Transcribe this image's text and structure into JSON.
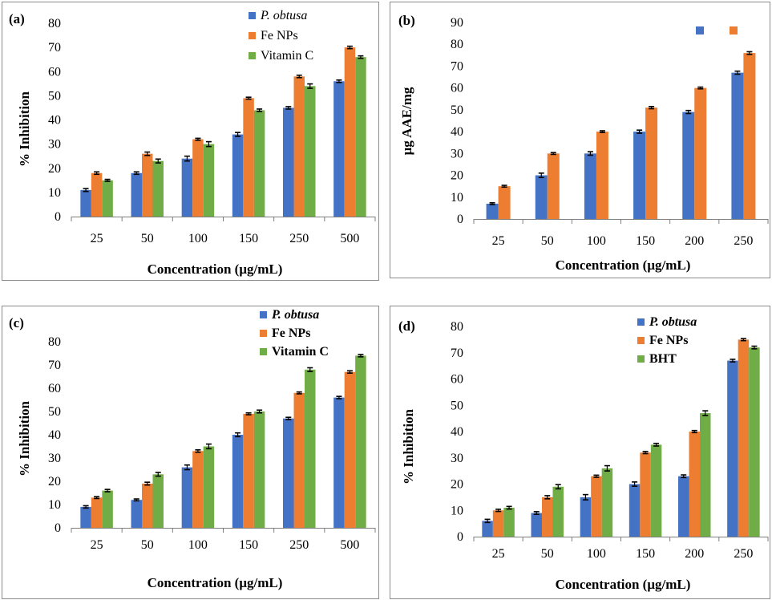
{
  "colors": {
    "s1": "#4472C4",
    "s2": "#ED7D31",
    "s3": "#70AD47",
    "error": "#000000",
    "axis": "#7f7f7f"
  },
  "chart_data": [
    {
      "id": "a",
      "panel_label": "(a)",
      "type": "bar",
      "ylabel": "% Inhibition",
      "xlabel": "Concentration (μg/mL)",
      "ylim": [
        0,
        80
      ],
      "ystep": 10,
      "grid": false,
      "legend_placement": "top-center",
      "categories": [
        "25",
        "50",
        "100",
        "150",
        "250",
        "500"
      ],
      "series": [
        {
          "name": "P. obtusa",
          "italic": true,
          "values": [
            11,
            18,
            24,
            34,
            45,
            56
          ],
          "errors": [
            0.6,
            0.5,
            1.0,
            0.8,
            0.5,
            0.5
          ]
        },
        {
          "name": "Fe NPs",
          "values": [
            18,
            26,
            32,
            49,
            58,
            70
          ],
          "errors": [
            0.5,
            0.7,
            0.4,
            0.4,
            0.5,
            0.5
          ]
        },
        {
          "name": "Vitamin C",
          "values": [
            15,
            23,
            30,
            44,
            54,
            66
          ],
          "errors": [
            0.4,
            0.8,
            1.0,
            0.5,
            0.9,
            0.5
          ]
        }
      ]
    },
    {
      "id": "b",
      "panel_label": "(b)",
      "type": "bar",
      "ylabel": "μg AAE/mg",
      "xlabel": "Concentration (μg/mL)",
      "ylim": [
        0,
        90
      ],
      "ystep": 10,
      "grid": false,
      "legend_placement": "top-right",
      "categories": [
        "25",
        "50",
        "100",
        "150",
        "200",
        "250"
      ],
      "series": [
        {
          "name": "",
          "values": [
            7,
            20,
            30,
            40,
            49,
            67
          ],
          "errors": [
            0.4,
            1.0,
            0.8,
            0.7,
            0.7,
            0.7
          ]
        },
        {
          "name": "",
          "values": [
            15,
            30,
            40,
            51,
            60,
            76
          ],
          "errors": [
            0.4,
            0.4,
            0.4,
            0.5,
            0.4,
            0.6
          ]
        }
      ]
    },
    {
      "id": "c",
      "panel_label": "(c)",
      "type": "bar",
      "ylabel": "% Inhibition",
      "xlabel": "Concentration (μg/mL)",
      "ylim": [
        0,
        80
      ],
      "ystep": 10,
      "grid": false,
      "legend_placement": "top-center",
      "categories": [
        "25",
        "50",
        "100",
        "150",
        "250",
        "500"
      ],
      "series": [
        {
          "name": "P. obtusa",
          "italic": true,
          "values": [
            9,
            12,
            26,
            40,
            47,
            56
          ],
          "errors": [
            0.5,
            0.4,
            1.0,
            0.8,
            0.5,
            0.5
          ]
        },
        {
          "name": "Fe NPs",
          "values": [
            13,
            19,
            33,
            49,
            58,
            67
          ],
          "errors": [
            0.4,
            0.6,
            0.5,
            0.4,
            0.4,
            0.5
          ]
        },
        {
          "name": "Vitamin C",
          "values": [
            16,
            23,
            35,
            50,
            68,
            74
          ],
          "errors": [
            0.5,
            0.8,
            1.0,
            0.6,
            0.8,
            0.5
          ]
        }
      ]
    },
    {
      "id": "d",
      "panel_label": "(d)",
      "type": "bar",
      "ylabel": "% Inhibition",
      "xlabel": "Concentration (μg/mL)",
      "ylim": [
        0,
        80
      ],
      "ystep": 10,
      "grid": false,
      "legend_placement": "top-center",
      "categories": [
        "25",
        "50",
        "100",
        "150",
        "200",
        "250"
      ],
      "series": [
        {
          "name": "P. obtusa",
          "italic": true,
          "values": [
            6,
            9,
            15,
            20,
            23,
            67
          ],
          "errors": [
            0.6,
            0.5,
            1.0,
            0.8,
            0.5,
            0.5
          ]
        },
        {
          "name": "Fe NPs",
          "values": [
            10,
            15,
            23,
            32,
            40,
            75
          ],
          "errors": [
            0.4,
            0.6,
            0.4,
            0.4,
            0.4,
            0.4
          ]
        },
        {
          "name": "BHT",
          "values": [
            11,
            19,
            26,
            35,
            47,
            72
          ],
          "errors": [
            0.5,
            0.8,
            1.0,
            0.5,
            0.9,
            0.5
          ]
        }
      ]
    }
  ]
}
